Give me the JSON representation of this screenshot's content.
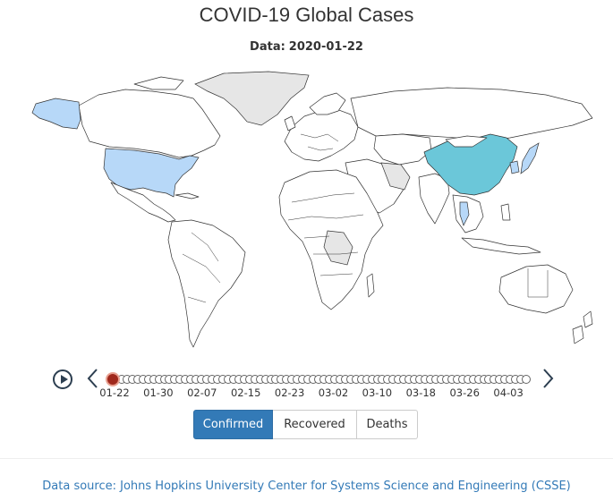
{
  "title": "COVID-19 Global Cases",
  "subtitle": {
    "prefix": "Data:",
    "date": "2020-01-22"
  },
  "map": {
    "highlighted_countries": [
      {
        "name": "China",
        "shade": "teal"
      },
      {
        "name": "United States",
        "shade": "light-blue"
      },
      {
        "name": "Japan",
        "shade": "light-blue"
      },
      {
        "name": "South Korea",
        "shade": "light-blue"
      },
      {
        "name": "Thailand",
        "shade": "light-blue"
      }
    ],
    "colors": {
      "teal": "#6bc7d9",
      "light_blue": "#b7d8f8",
      "no_data": "#e6e6e6",
      "land": "#ffffff",
      "border": "#333333"
    }
  },
  "timeline": {
    "play_icon": "play-icon",
    "prev_icon": "chevron-left-icon",
    "next_icon": "chevron-right-icon",
    "tick_count": 79,
    "current_index": 0,
    "labels": [
      "01-22",
      "01-30",
      "02-07",
      "02-15",
      "02-23",
      "03-02",
      "03-10",
      "03-18",
      "03-26",
      "04-03"
    ]
  },
  "metric_buttons": [
    {
      "label": "Confirmed",
      "active": true
    },
    {
      "label": "Recovered",
      "active": false
    },
    {
      "label": "Deaths",
      "active": false
    }
  ],
  "footer": {
    "source_text": "Data source: Johns Hopkins University Center for Systems Science and Engineering (CSSE)"
  },
  "accent_color": "#337ab7",
  "current_marker_color": "#a0281c"
}
